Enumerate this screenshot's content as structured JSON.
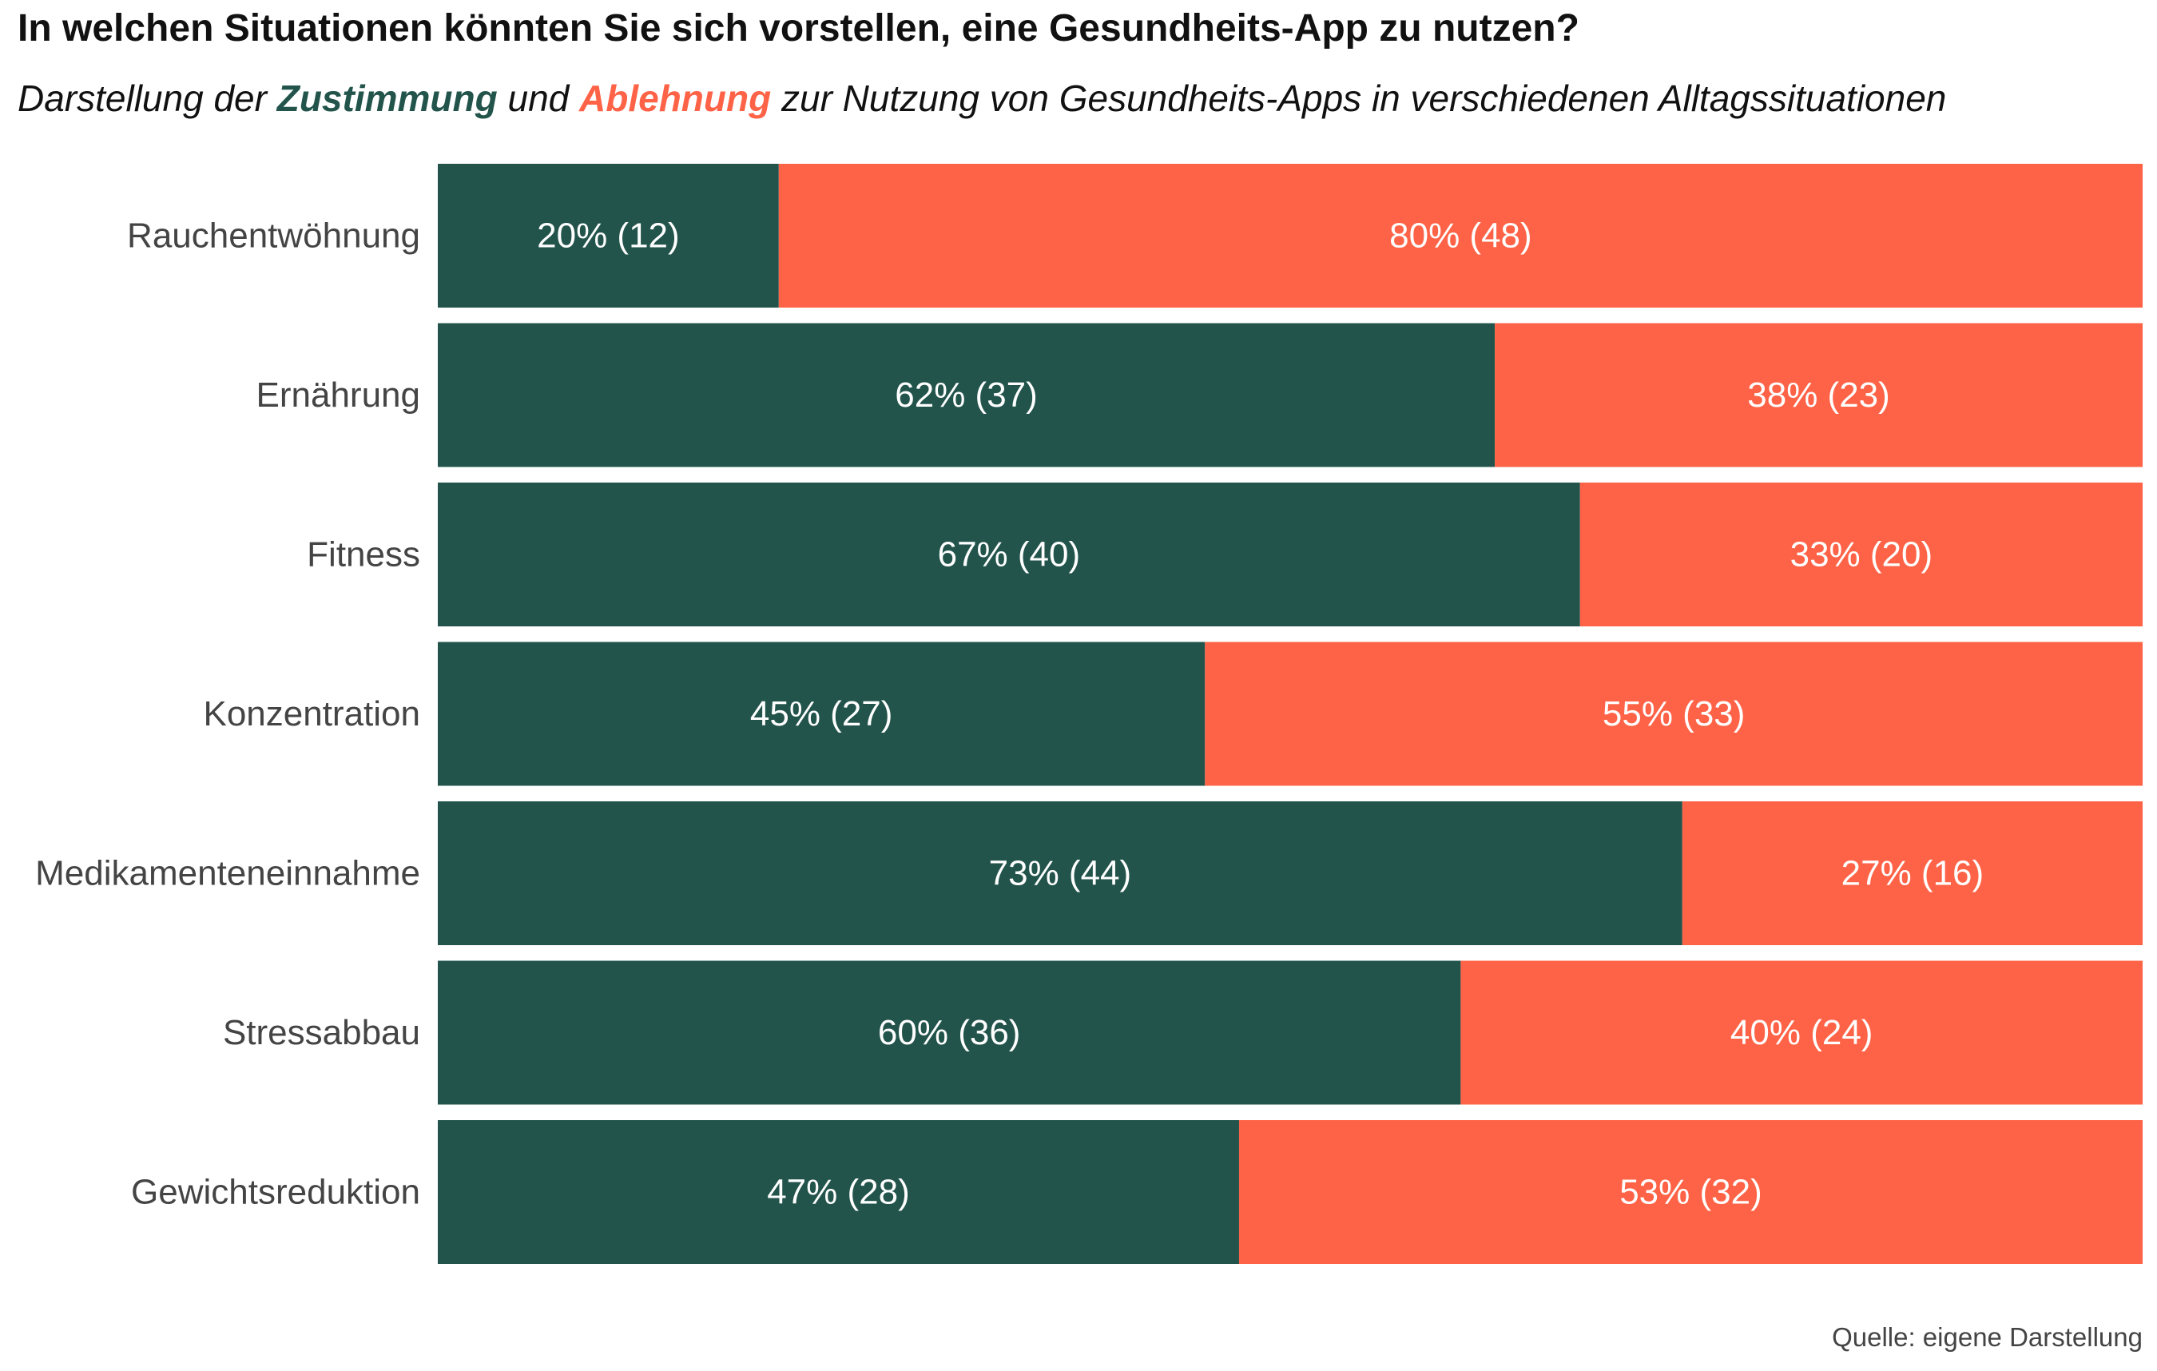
{
  "colors": {
    "zustimmung": "#22544c",
    "ablehnung": "#ff6347",
    "label_text": "#ffffff",
    "category_text": "#444444"
  },
  "subtitle": {
    "prefix": "Darstellung der ",
    "highlight_1": "Zustimmung",
    "middle": " und ",
    "highlight_2": "Ablehnung",
    "suffix": " zur Nutzung von Gesundheits-Apps in verschiedenen Alltagssituationen"
  },
  "caption": "Quelle: eigene Darstellung",
  "chart_data": {
    "type": "bar",
    "orientation": "horizontal",
    "stacked": true,
    "normalized": true,
    "title": "In welchen Situationen könnten Sie sich vorstellen, eine Gesundheits-App zu nutzen?",
    "categories": [
      "Rauchentwöhnung",
      "Ernährung",
      "Fitness",
      "Konzentration",
      "Medikamenteneinnahme",
      "Stressabbau",
      "Gewichtsreduktion"
    ],
    "series": [
      {
        "name": "Zustimmung",
        "percent": [
          20,
          62,
          67,
          45,
          73,
          60,
          47
        ],
        "counts": [
          12,
          37,
          40,
          27,
          44,
          36,
          28
        ],
        "labels": [
          "20% (12)",
          "62% (37)",
          "67% (40)",
          "45% (27)",
          "73% (44)",
          "60% (36)",
          "47% (28)"
        ]
      },
      {
        "name": "Ablehnung",
        "percent": [
          80,
          38,
          33,
          55,
          27,
          40,
          53
        ],
        "counts": [
          48,
          23,
          20,
          33,
          16,
          24,
          32
        ],
        "labels": [
          "80% (48)",
          "38% (23)",
          "33% (20)",
          "55% (33)",
          "27% (16)",
          "40% (24)",
          "53% (32)"
        ]
      }
    ],
    "xlim": [
      0,
      1
    ],
    "grid": false,
    "legend": "none"
  }
}
